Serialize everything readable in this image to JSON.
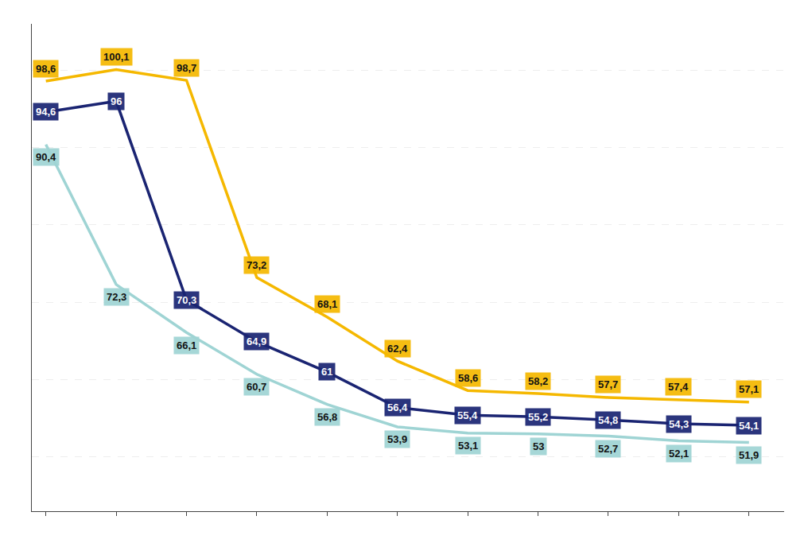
{
  "chart_data": {
    "type": "line",
    "x": [
      0,
      1,
      2,
      3,
      4,
      5,
      6,
      7,
      8,
      9,
      10
    ],
    "series": [
      {
        "color": "#9fd4d4",
        "values": [
          90.4,
          72.3,
          66.1,
          60.7,
          56.8,
          53.9,
          53.1,
          53.0,
          52.7,
          52.1,
          51.9
        ],
        "value_labels": [
          "90,4",
          "72,3",
          "66,1",
          "60,7",
          "56,8",
          "53,9",
          "53,1",
          "53",
          "52,7",
          "52,1",
          "51,9"
        ]
      },
      {
        "color": "#1a2472",
        "values": [
          94.6,
          96.0,
          70.3,
          64.9,
          61.0,
          56.4,
          55.4,
          55.2,
          54.8,
          54.3,
          54.1
        ],
        "value_labels": [
          "94,6",
          "96",
          "70,3",
          "64,9",
          "61",
          "56,4",
          "55,4",
          "55,2",
          "54,8",
          "54,3",
          "54,1"
        ]
      },
      {
        "color": "#f5b800",
        "values": [
          98.6,
          100.1,
          98.7,
          73.2,
          68.1,
          62.4,
          58.6,
          58.2,
          57.7,
          57.4,
          57.1
        ],
        "value_labels": [
          "98,6",
          "100,1",
          "98,7",
          "73,2",
          "68,1",
          "62,4",
          "58,6",
          "58,2",
          "57,7",
          "57,4",
          "57,1"
        ]
      }
    ],
    "xlim": [
      -0.2,
      10.5
    ],
    "xticks": [
      0,
      1,
      2,
      3,
      4,
      5,
      6,
      7,
      8,
      9,
      10
    ],
    "ylim": [
      43,
      106
    ],
    "yticks": [
      50,
      60,
      70,
      80,
      90,
      100
    ],
    "grid": true,
    "data_labels": true,
    "tick_labels": false
  }
}
